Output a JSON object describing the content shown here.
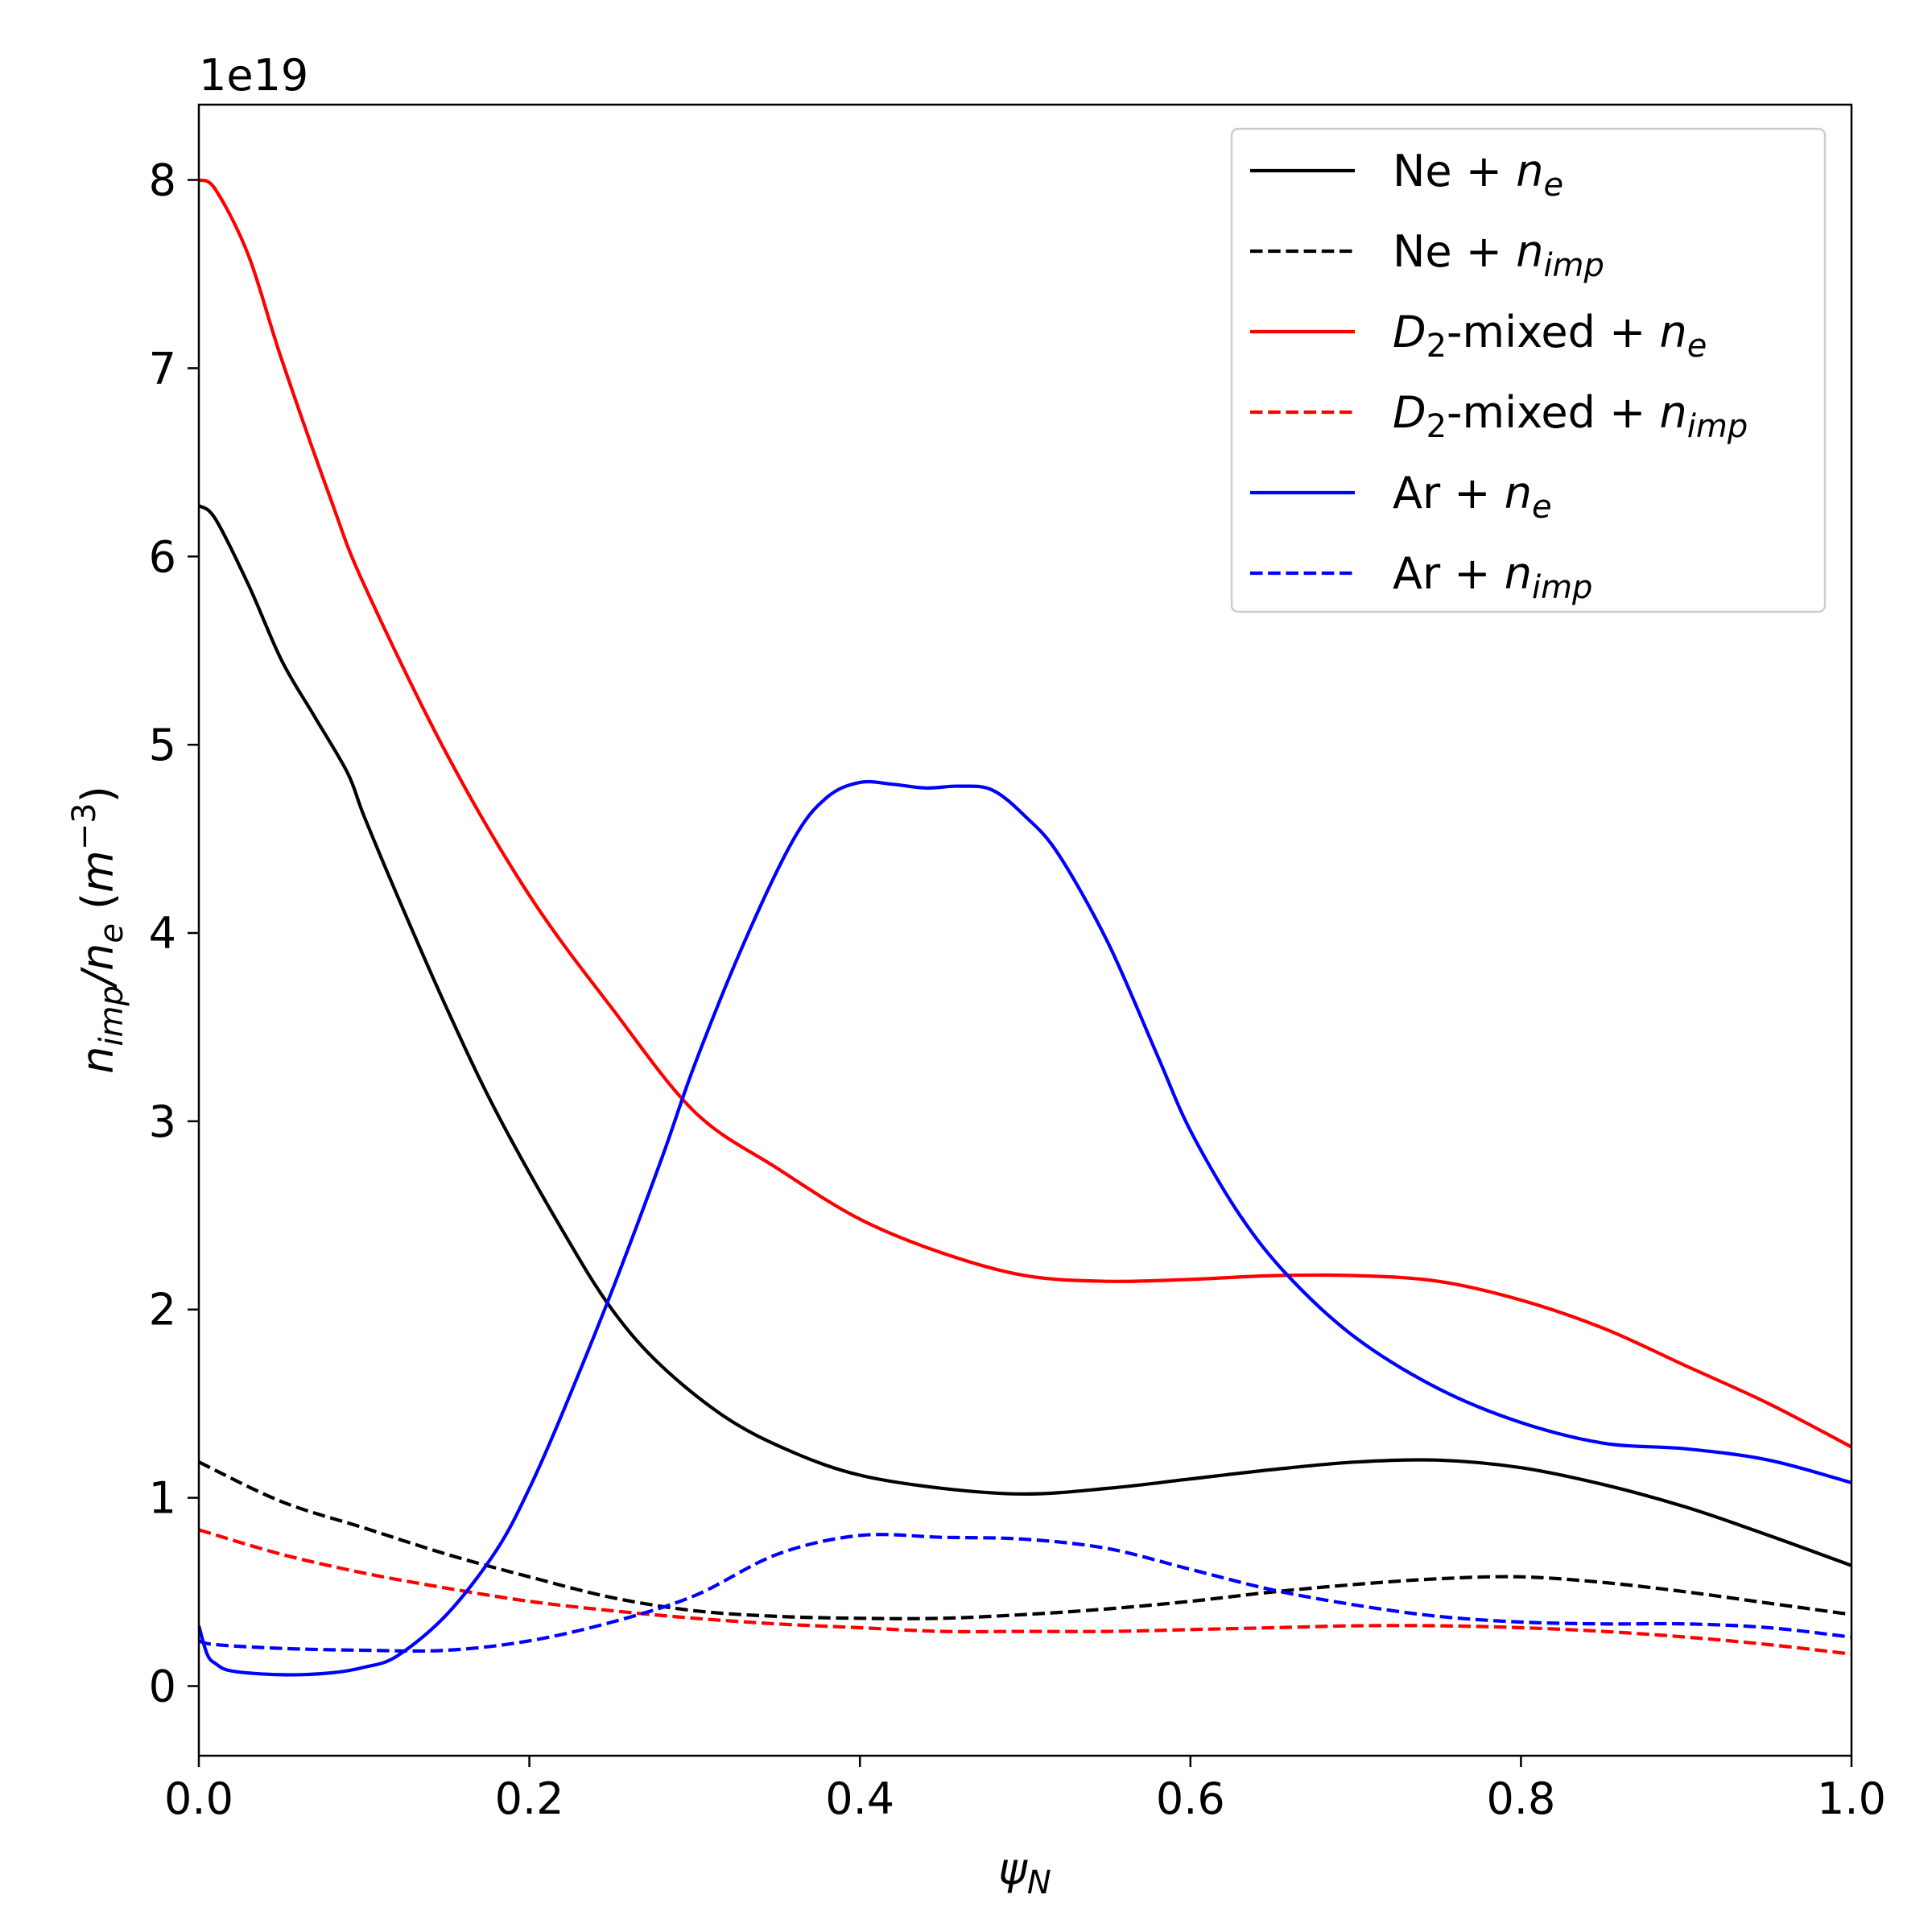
{
  "chart_data": {
    "type": "line",
    "offset_text": "1e19",
    "xlabel": {
      "main": "ψ",
      "sub": "N"
    },
    "ylabel": {
      "n1": "n",
      "sub1": "imp",
      "slash": "/",
      "n2": "n",
      "sub2": "e",
      "open": " (",
      "unit": "m",
      "exp": "−3",
      "close": ")"
    },
    "xlim": [
      0.0,
      1.0
    ],
    "ylim": [
      -0.37,
      8.4
    ],
    "xticks": [
      0.0,
      0.2,
      0.4,
      0.6,
      0.8,
      1.0
    ],
    "xtick_labels": [
      "0.0",
      "0.2",
      "0.4",
      "0.6",
      "0.8",
      "1.0"
    ],
    "yticks": [
      0,
      1,
      2,
      3,
      4,
      5,
      6,
      7,
      8
    ],
    "ytick_labels": [
      "0",
      "1",
      "2",
      "3",
      "4",
      "5",
      "6",
      "7",
      "8"
    ],
    "grid": false,
    "legend_position": "top-right",
    "series": [
      {
        "name": "Ne + n_e",
        "label": {
          "pre": "Ne + ",
          "base": "n",
          "sub": "e",
          "italic_pre": false
        },
        "color": "#000000",
        "dashed": false,
        "x": [
          0,
          0.01,
          0.03,
          0.05,
          0.07,
          0.09,
          0.1,
          0.12,
          0.15,
          0.18,
          0.22,
          0.25,
          0.28,
          0.32,
          0.36,
          0.4,
          0.45,
          0.5,
          0.55,
          0.6,
          0.65,
          0.7,
          0.75,
          0.8,
          0.85,
          0.9,
          0.95,
          1.0
        ],
        "values": [
          6.27,
          6.2,
          5.85,
          5.45,
          5.15,
          4.85,
          4.62,
          4.2,
          3.6,
          3.05,
          2.42,
          2.0,
          1.7,
          1.42,
          1.24,
          1.12,
          1.05,
          1.02,
          1.05,
          1.1,
          1.15,
          1.19,
          1.2,
          1.16,
          1.07,
          0.95,
          0.8,
          0.64
        ]
      },
      {
        "name": "Ne + n_imp",
        "label": {
          "pre": "Ne + ",
          "base": "n",
          "sub": "imp",
          "italic_pre": false
        },
        "color": "#000000",
        "dashed": true,
        "x": [
          0,
          0.05,
          0.1,
          0.15,
          0.2,
          0.25,
          0.3,
          0.35,
          0.4,
          0.45,
          0.5,
          0.55,
          0.6,
          0.65,
          0.7,
          0.75,
          0.8,
          0.85,
          0.9,
          0.95,
          1.0
        ],
        "values": [
          1.19,
          0.98,
          0.84,
          0.7,
          0.58,
          0.47,
          0.4,
          0.37,
          0.36,
          0.36,
          0.38,
          0.41,
          0.45,
          0.5,
          0.54,
          0.57,
          0.58,
          0.55,
          0.5,
          0.44,
          0.38
        ]
      },
      {
        "name": "D2-mixed + n_e",
        "label": {
          "pre": "D",
          "pre_sub": "2",
          "mid": "-mixed + ",
          "base": "n",
          "sub": "e",
          "italic_pre": true
        },
        "color": "#ff0000",
        "dashed": false,
        "x": [
          0,
          0.01,
          0.03,
          0.05,
          0.08,
          0.1,
          0.15,
          0.2,
          0.25,
          0.3,
          0.35,
          0.4,
          0.45,
          0.5,
          0.55,
          0.6,
          0.65,
          0.7,
          0.75,
          0.8,
          0.85,
          0.9,
          0.95,
          1.0
        ],
        "values": [
          8.0,
          7.95,
          7.6,
          7.05,
          6.3,
          5.85,
          4.95,
          4.2,
          3.6,
          3.05,
          2.75,
          2.48,
          2.3,
          2.18,
          2.15,
          2.16,
          2.18,
          2.18,
          2.15,
          2.05,
          1.9,
          1.7,
          1.5,
          1.27
        ]
      },
      {
        "name": "D2-mixed + n_imp",
        "label": {
          "pre": "D",
          "pre_sub": "2",
          "mid": "-mixed + ",
          "base": "n",
          "sub": "imp",
          "italic_pre": true
        },
        "color": "#ff0000",
        "dashed": true,
        "x": [
          0,
          0.05,
          0.1,
          0.15,
          0.2,
          0.25,
          0.3,
          0.35,
          0.4,
          0.45,
          0.5,
          0.55,
          0.6,
          0.65,
          0.7,
          0.75,
          0.8,
          0.85,
          0.9,
          0.95,
          1.0
        ],
        "values": [
          0.83,
          0.7,
          0.6,
          0.52,
          0.45,
          0.4,
          0.36,
          0.33,
          0.31,
          0.29,
          0.29,
          0.29,
          0.3,
          0.31,
          0.32,
          0.32,
          0.31,
          0.29,
          0.26,
          0.22,
          0.17
        ]
      },
      {
        "name": "Ar + n_e",
        "label": {
          "pre": "Ar + ",
          "base": "n",
          "sub": "e",
          "italic_pre": false
        },
        "color": "#0000ff",
        "dashed": false,
        "x": [
          0,
          0.005,
          0.01,
          0.02,
          0.05,
          0.08,
          0.1,
          0.12,
          0.15,
          0.18,
          0.2,
          0.22,
          0.25,
          0.28,
          0.3,
          0.33,
          0.36,
          0.38,
          0.4,
          0.42,
          0.44,
          0.46,
          0.48,
          0.5,
          0.52,
          0.55,
          0.58,
          0.6,
          0.63,
          0.66,
          0.7,
          0.75,
          0.8,
          0.85,
          0.9,
          0.95,
          1.0
        ],
        "values": [
          0.32,
          0.17,
          0.12,
          0.08,
          0.06,
          0.07,
          0.1,
          0.16,
          0.38,
          0.72,
          1.05,
          1.45,
          2.1,
          2.8,
          3.3,
          3.95,
          4.5,
          4.72,
          4.8,
          4.79,
          4.77,
          4.78,
          4.76,
          4.62,
          4.42,
          3.95,
          3.35,
          2.95,
          2.5,
          2.17,
          1.85,
          1.58,
          1.4,
          1.29,
          1.26,
          1.2,
          1.08
        ]
      },
      {
        "name": "Ar + n_imp",
        "label": {
          "pre": "Ar + ",
          "base": "n",
          "sub": "imp",
          "italic_pre": false
        },
        "color": "#0000ff",
        "dashed": true,
        "x": [
          0,
          0.01,
          0.05,
          0.1,
          0.15,
          0.2,
          0.25,
          0.3,
          0.35,
          0.4,
          0.45,
          0.5,
          0.55,
          0.6,
          0.65,
          0.7,
          0.75,
          0.8,
          0.85,
          0.9,
          0.95,
          1.0
        ],
        "values": [
          0.24,
          0.22,
          0.2,
          0.19,
          0.19,
          0.24,
          0.34,
          0.48,
          0.7,
          0.8,
          0.79,
          0.78,
          0.73,
          0.62,
          0.51,
          0.43,
          0.37,
          0.34,
          0.33,
          0.33,
          0.31,
          0.26
        ]
      }
    ]
  }
}
